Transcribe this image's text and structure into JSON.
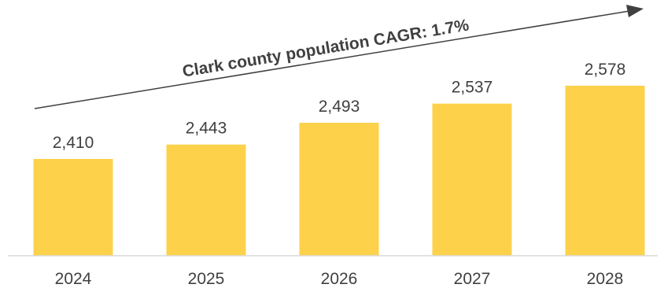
{
  "chart_data": {
    "type": "bar",
    "categories": [
      "2024",
      "2025",
      "2026",
      "2027",
      "2028"
    ],
    "values": [
      2410,
      2443,
      2493,
      2537,
      2578
    ],
    "value_labels": [
      "2,410",
      "2,443",
      "2,493",
      "2,537",
      "2,578"
    ],
    "annotation": "Clark county population CAGR: 1.7%",
    "grid": false,
    "legend": "none",
    "bar_color": "#FDD24A",
    "axis_color": "#D9D9D9",
    "text_color": "#404040"
  }
}
